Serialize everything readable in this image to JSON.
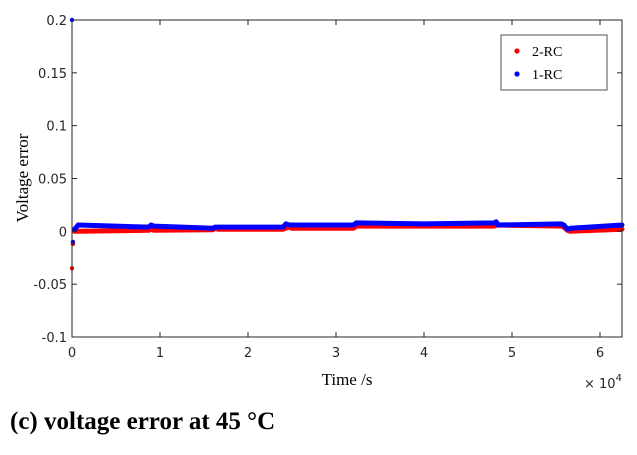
{
  "chart_data": {
    "type": "line",
    "xlabel": "Time /s",
    "ylabel": "Voltage error",
    "x_exponent_label": "× 10",
    "x_exponent_power": "4",
    "xlim": [
      0,
      62500
    ],
    "ylim": [
      -0.1,
      0.2
    ],
    "x_ticks": [
      0,
      10000,
      20000,
      30000,
      40000,
      50000,
      60000
    ],
    "x_tick_labels": [
      "0",
      "1",
      "2",
      "3",
      "4",
      "5",
      "6"
    ],
    "y_ticks": [
      -0.1,
      -0.05,
      0,
      0.05,
      0.1,
      0.15,
      0.2
    ],
    "y_tick_labels": [
      "-0.1",
      "-0.05",
      "0",
      "0.05",
      "0.1",
      "0.15",
      "0.2"
    ],
    "grid": false,
    "legend_position": "top-right",
    "series": [
      {
        "name": "2-RC",
        "color": "#ff0000",
        "x": [
          0,
          100,
          300,
          700,
          8700,
          9000,
          9300,
          16000,
          16300,
          16600,
          24000,
          24600,
          25000,
          32000,
          32300,
          40000,
          48000,
          48300,
          55600,
          55900,
          56300,
          56600,
          62500
        ],
        "y": [
          -0.035,
          -0.012,
          0.0,
          0.0,
          0.001,
          0.002,
          0.001,
          0.0015,
          0.003,
          0.002,
          0.002,
          0.004,
          0.003,
          0.003,
          0.005,
          0.005,
          0.005,
          0.006,
          0.005,
          0.004,
          0.001,
          0.0,
          0.002
        ],
        "marker": "dot"
      },
      {
        "name": "1-RC",
        "color": "#0000ff",
        "x": [
          0,
          100,
          300,
          700,
          8700,
          9000,
          9300,
          16000,
          16300,
          16600,
          24000,
          24300,
          24700,
          32000,
          32300,
          40000,
          48000,
          48200,
          48400,
          55600,
          55900,
          56300,
          56700,
          62500
        ],
        "y": [
          0.2,
          -0.01,
          0.002,
          0.006,
          0.004,
          0.006,
          0.005,
          0.003,
          0.004,
          0.004,
          0.004,
          0.007,
          0.006,
          0.006,
          0.008,
          0.007,
          0.008,
          0.009,
          0.006,
          0.007,
          0.006,
          0.002,
          0.003,
          0.006
        ],
        "marker": "dot"
      }
    ]
  },
  "caption": {
    "label": "(c)",
    "text": " voltage error at 45 °C"
  }
}
